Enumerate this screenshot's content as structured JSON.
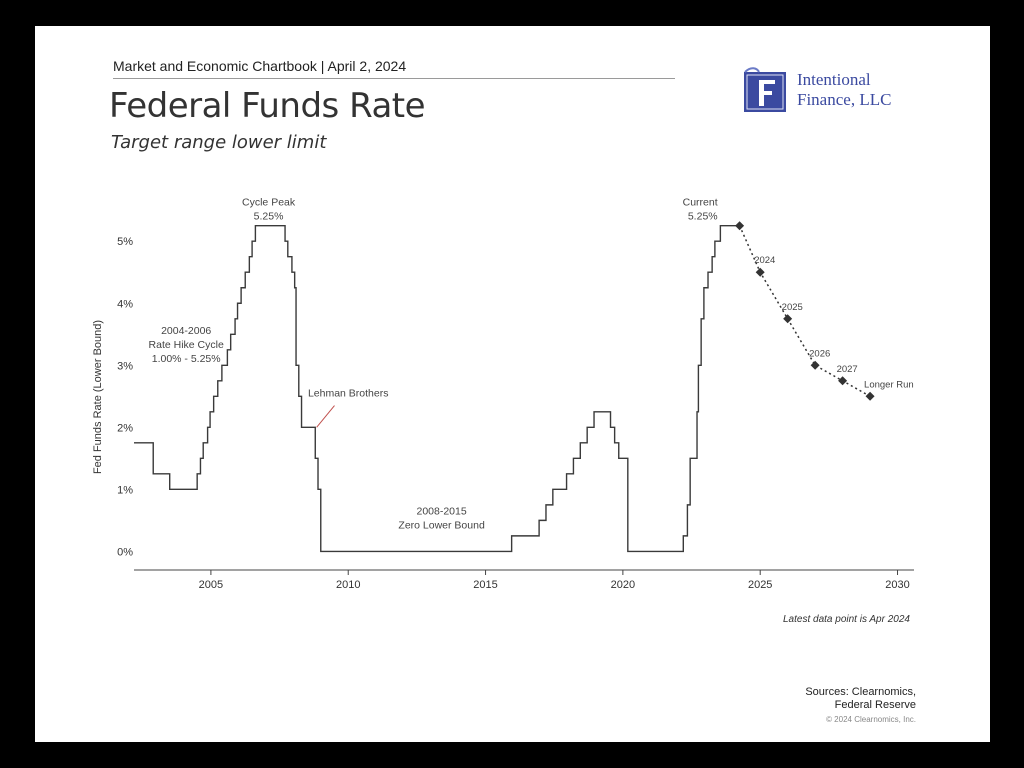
{
  "header": {
    "kicker": "Market and Economic Chartbook | April 2, 2024",
    "title": "Federal Funds Rate",
    "subtitle": "Target range lower limit"
  },
  "logo": {
    "line1": "Intentional",
    "line2": "Finance, LLC",
    "icon": "f-crest-icon"
  },
  "footer": {
    "note": "Latest data point is Apr 2024",
    "sources_line1": "Sources: Clearnomics,",
    "sources_line2": "Federal Reserve",
    "copyright": "© 2024 Clearnomics, Inc."
  },
  "colors": {
    "line": "#3a3a3a",
    "annotation_red": "#c0504d",
    "logo_blue": "#3b4aa0"
  },
  "chart_data": {
    "type": "line",
    "ylabel": "Fed Funds Rate (Lower Bound)",
    "xlim": [
      2002.2,
      2030.6
    ],
    "ylim": [
      -0.3,
      5.6
    ],
    "x_ticks": [
      2005,
      2010,
      2015,
      2020,
      2025,
      2030
    ],
    "y_ticks": [
      0,
      1,
      2,
      3,
      4,
      5
    ],
    "y_tick_labels": [
      "0%",
      "1%",
      "2%",
      "3%",
      "4%",
      "5%"
    ],
    "grid": false,
    "series": [
      {
        "style": "step",
        "points": [
          [
            2002.2,
            1.75
          ],
          [
            2002.9,
            1.25
          ],
          [
            2003.5,
            1.0
          ],
          [
            2004.5,
            1.25
          ],
          [
            2004.62,
            1.5
          ],
          [
            2004.72,
            1.75
          ],
          [
            2004.88,
            2.0
          ],
          [
            2004.97,
            2.25
          ],
          [
            2005.1,
            2.5
          ],
          [
            2005.25,
            2.75
          ],
          [
            2005.4,
            3.0
          ],
          [
            2005.6,
            3.25
          ],
          [
            2005.72,
            3.5
          ],
          [
            2005.88,
            3.75
          ],
          [
            2005.97,
            4.0
          ],
          [
            2006.1,
            4.25
          ],
          [
            2006.25,
            4.5
          ],
          [
            2006.4,
            4.75
          ],
          [
            2006.5,
            5.0
          ],
          [
            2006.62,
            5.25
          ],
          [
            2007.7,
            5.0
          ],
          [
            2007.8,
            4.75
          ],
          [
            2007.95,
            4.5
          ],
          [
            2008.05,
            4.25
          ],
          [
            2008.1,
            3.0
          ],
          [
            2008.2,
            2.5
          ],
          [
            2008.3,
            2.0
          ],
          [
            2008.8,
            1.5
          ],
          [
            2008.9,
            1.0
          ],
          [
            2009.0,
            0.0
          ],
          [
            2015.95,
            0.25
          ],
          [
            2016.95,
            0.5
          ],
          [
            2017.2,
            0.75
          ],
          [
            2017.45,
            1.0
          ],
          [
            2017.95,
            1.25
          ],
          [
            2018.2,
            1.5
          ],
          [
            2018.45,
            1.75
          ],
          [
            2018.7,
            2.0
          ],
          [
            2018.95,
            2.25
          ],
          [
            2019.55,
            2.0
          ],
          [
            2019.7,
            1.75
          ],
          [
            2019.85,
            1.5
          ],
          [
            2020.18,
            0.0
          ],
          [
            2022.2,
            0.25
          ],
          [
            2022.35,
            0.75
          ],
          [
            2022.45,
            1.5
          ],
          [
            2022.7,
            2.25
          ],
          [
            2022.75,
            3.0
          ],
          [
            2022.85,
            3.75
          ],
          [
            2022.95,
            4.25
          ],
          [
            2023.1,
            4.5
          ],
          [
            2023.25,
            4.75
          ],
          [
            2023.35,
            5.0
          ],
          [
            2023.55,
            5.25
          ],
          [
            2024.25,
            5.25
          ]
        ]
      },
      {
        "style": "dotted-projection",
        "points": [
          [
            2024.25,
            5.25
          ],
          [
            2025.0,
            4.5
          ],
          [
            2026.0,
            3.75
          ],
          [
            2027.0,
            3.0
          ],
          [
            2028.0,
            2.75
          ],
          [
            2029.0,
            2.5
          ]
        ],
        "point_labels": [
          "",
          "2024",
          "2025",
          "2026",
          "2027",
          "Longer Run"
        ]
      }
    ],
    "annotations": [
      {
        "id": "cycle-peak",
        "lines": [
          "Cycle Peak",
          "5.25%"
        ],
        "at": [
          2007.1,
          5.35
        ],
        "anchor": "middle",
        "color": "#444"
      },
      {
        "id": "current",
        "lines": [
          "Current",
          "5.25%"
        ],
        "at": [
          2023.45,
          5.35
        ],
        "anchor": "end",
        "color": "#444"
      },
      {
        "id": "hike-cycle",
        "lines": [
          "2004-2006",
          "Rate Hike Cycle",
          "1.00% - 5.25%"
        ],
        "at": [
          2004.1,
          3.05
        ],
        "anchor": "middle",
        "color": "#444"
      },
      {
        "id": "lehman",
        "lines": [
          "Lehman Brothers"
        ],
        "at": [
          2010.0,
          2.5
        ],
        "anchor": "middle",
        "color": "#444"
      },
      {
        "id": "zero-bound",
        "lines": [
          "2008-2015",
          "Zero Lower Bound"
        ],
        "at": [
          2013.4,
          0.37
        ],
        "anchor": "middle",
        "color": "#c0504d"
      }
    ]
  }
}
